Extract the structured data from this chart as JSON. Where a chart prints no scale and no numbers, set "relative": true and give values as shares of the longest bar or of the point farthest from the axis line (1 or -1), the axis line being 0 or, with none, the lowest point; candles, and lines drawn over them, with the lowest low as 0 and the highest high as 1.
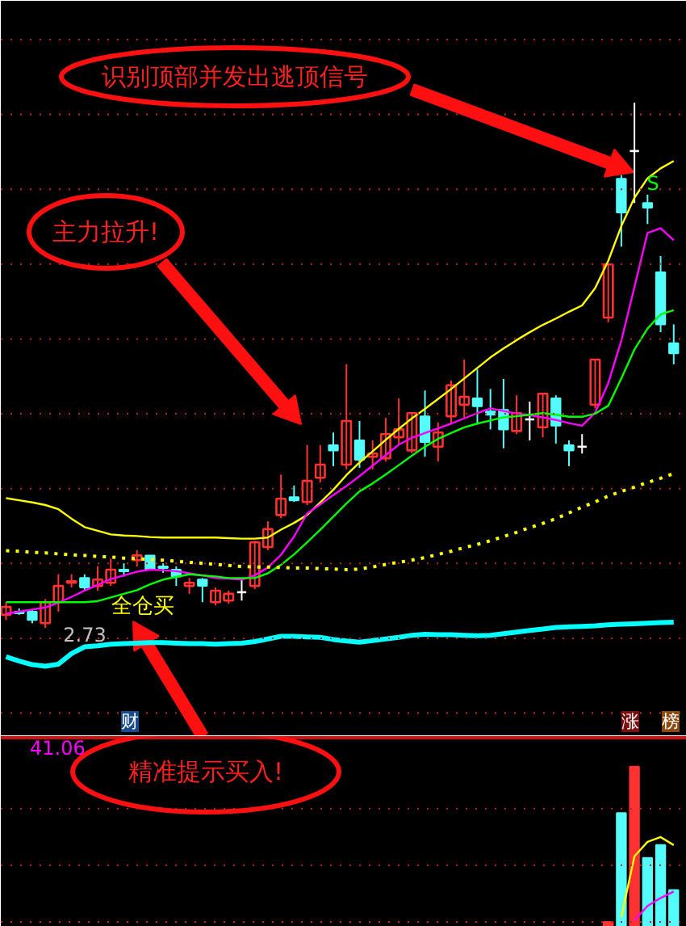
{
  "chart_data": [
    {
      "type": "candlestick",
      "relative": true,
      "ref_lines": [
        {
          "axis": "y",
          "value": 1.12,
          "color": "#c02020",
          "line_style": "dotted"
        },
        {
          "axis": "y",
          "value": 0.978,
          "color": "#c02020",
          "line_style": "dotted"
        },
        {
          "axis": "y",
          "value": 0.835,
          "color": "#c02020",
          "line_style": "dotted"
        },
        {
          "axis": "y",
          "value": 0.693,
          "color": "#c02020",
          "line_style": "dotted"
        },
        {
          "axis": "y",
          "value": 0.55,
          "color": "#c02020",
          "line_style": "dotted"
        },
        {
          "axis": "y",
          "value": 0.408,
          "color": "#c02020",
          "line_style": "dotted"
        },
        {
          "axis": "y",
          "value": 0.265,
          "color": "#c02020",
          "line_style": "dotted"
        },
        {
          "axis": "y",
          "value": 0.123,
          "color": "#c02020",
          "line_style": "dotted"
        },
        {
          "axis": "y",
          "value": -0.02,
          "color": "#c02020",
          "line_style": "dotted"
        },
        {
          "axis": "y",
          "value": -0.162,
          "color": "#c02020",
          "line_style": "dotted"
        }
      ],
      "categories": [
        null,
        null,
        null,
        null,
        null,
        null,
        null,
        null,
        null,
        null,
        null,
        null,
        null,
        null,
        null,
        null,
        null,
        null,
        null,
        null,
        null,
        null,
        null,
        null,
        null,
        null,
        null,
        null,
        null,
        null,
        null,
        null,
        null,
        null,
        null,
        null,
        null,
        null,
        null,
        null,
        null,
        null,
        null,
        null,
        null,
        null,
        null,
        null,
        null,
        null,
        null,
        null
      ],
      "ohlc": [
        [
          0.025,
          0.049,
          0.015,
          0.04
        ],
        [
          0.031,
          0.037,
          0.025,
          0.028
        ],
        [
          0.031,
          0.034,
          0.009,
          0.015
        ],
        [
          0.009,
          0.055,
          0,
          0.049
        ],
        [
          0.049,
          0.102,
          0.031,
          0.08
        ],
        [
          0.086,
          0.102,
          0.077,
          0.089
        ],
        [
          0.095,
          0.102,
          0.071,
          0.077
        ],
        [
          0.08,
          0.117,
          0.071,
          0.092
        ],
        [
          0.086,
          0.132,
          0.08,
          0.111
        ],
        [
          0.111,
          0.123,
          0.098,
          0.108
        ],
        [
          0.129,
          0.148,
          0.117,
          0.138
        ],
        [
          0.138,
          0.138,
          0.111,
          0.111
        ],
        [
          0.117,
          0.123,
          0.105,
          0.114
        ],
        [
          0.111,
          0.117,
          0.08,
          0.098
        ],
        [
          0.08,
          0.095,
          0.065,
          0.086
        ],
        [
          0.092,
          0.095,
          0.049,
          0.08
        ],
        [
          0.049,
          0.077,
          0.043,
          0.071
        ],
        [
          0.052,
          0.071,
          0.046,
          0.065
        ],
        [
          0.068,
          0.092,
          0.052,
          0.068
        ],
        [
          0.08,
          0.166,
          0.074,
          0.163
        ],
        [
          0.154,
          0.203,
          0.148,
          0.188
        ],
        [
          0.215,
          0.292,
          0.209,
          0.246
        ],
        [
          0.249,
          0.271,
          0.24,
          0.243
        ],
        [
          0.24,
          0.348,
          0.234,
          0.28
        ],
        [
          0.286,
          0.348,
          0.277,
          0.311
        ],
        [
          0.348,
          0.372,
          0.308,
          0.338
        ],
        [
          0.311,
          0.502,
          0.302,
          0.394
        ],
        [
          0.357,
          0.394,
          0.305,
          0.32
        ],
        [
          0.326,
          0.357,
          0.302,
          0.332
        ],
        [
          0.323,
          0.4,
          0.317,
          0.369
        ],
        [
          0.363,
          0.437,
          0.351,
          0.378
        ],
        [
          0.338,
          0.409,
          0.332,
          0.409
        ],
        [
          0.403,
          0.452,
          0.326,
          0.354
        ],
        [
          0.345,
          0.391,
          0.317,
          0.372
        ],
        [
          0.403,
          0.471,
          0.388,
          0.462
        ],
        [
          0.425,
          0.511,
          0.4,
          0.44
        ],
        [
          0.437,
          0.492,
          0.388,
          0.422
        ],
        [
          0.412,
          0.455,
          0.378,
          0.406
        ],
        [
          0.415,
          0.474,
          0.342,
          0.378
        ],
        [
          0.375,
          0.443,
          0.369,
          0.409
        ],
        [
          0.397,
          0.431,
          0.357,
          0.397
        ],
        [
          0.382,
          0.446,
          0.363,
          0.446
        ],
        [
          0.437,
          0.443,
          0.351,
          0.385
        ],
        [
          0.348,
          0.357,
          0.308,
          0.338
        ],
        [
          0.345,
          0.369,
          0.332,
          0.345
        ],
        [
          0.425,
          0.511,
          0.418,
          0.511
        ],
        [
          0.591,
          0.692,
          0.582,
          0.692
        ],
        [
          0.855,
          0.862,
          0.726,
          0.791
        ],
        [
          0.908,
          1,
          0.809,
          0.908
        ],
        [
          0.809,
          0.825,
          0.769,
          0.8
        ],
        [
          0.677,
          0.708,
          0.563,
          0.578
        ],
        [
          0.542,
          0.578,
          0.502,
          0.523
        ]
      ],
      "series": [
        {
          "type": "line",
          "color": "#ffff00",
          "values": [
            0.247,
            0.243,
            0.239,
            0.234,
            0.226,
            0.208,
            0.192,
            0.185,
            0.178,
            0.176,
            0.175,
            0.173,
            0.172,
            0.172,
            0.172,
            0.172,
            0.172,
            0.171,
            0.17,
            0.17,
            0.172,
            0.187,
            0.2,
            0.215,
            0.239,
            0.263,
            0.291,
            0.315,
            0.336,
            0.358,
            0.379,
            0.399,
            0.417,
            0.436,
            0.455,
            0.475,
            0.495,
            0.515,
            0.532,
            0.548,
            0.563,
            0.577,
            0.589,
            0.602,
            0.614,
            0.647,
            0.699,
            0.765,
            0.819,
            0.856,
            0.875,
            0.889
          ]
        },
        {
          "type": "line",
          "color": "#ff00ff",
          "values": [
            0.027,
            0.031,
            0.035,
            0.039,
            0.048,
            0.059,
            0.071,
            0.082,
            0.093,
            0.1,
            0.107,
            0.111,
            0.11,
            0.108,
            0.104,
            0.1,
            0.095,
            0.094,
            0.092,
            0.1,
            0.115,
            0.139,
            0.174,
            0.218,
            0.235,
            0.253,
            0.27,
            0.289,
            0.309,
            0.329,
            0.349,
            0.362,
            0.371,
            0.38,
            0.389,
            0.399,
            0.409,
            0.418,
            0.413,
            0.408,
            0.405,
            0.401,
            0.396,
            0.39,
            0.385,
            0.41,
            0.466,
            0.547,
            0.649,
            0.752,
            0.761,
            0.738
          ]
        },
        {
          "type": "line",
          "color": "#00ff00",
          "values": [
            0.049,
            0.049,
            0.049,
            0.049,
            0.049,
            0.049,
            0.049,
            0.051,
            0.058,
            0.065,
            0.072,
            0.083,
            0.092,
            0.097,
            0.102,
            0.1,
            0.098,
            0.095,
            0.095,
            0.095,
            0.104,
            0.12,
            0.14,
            0.163,
            0.187,
            0.212,
            0.237,
            0.26,
            0.275,
            0.292,
            0.31,
            0.328,
            0.345,
            0.36,
            0.371,
            0.382,
            0.389,
            0.395,
            0.401,
            0.403,
            0.406,
            0.409,
            0.406,
            0.402,
            0.402,
            0.408,
            0.423,
            0.475,
            0.53,
            0.57,
            0.597,
            0.605
          ]
        },
        {
          "type": "line",
          "color": "#00ffff",
          "values": [
            -0.055,
            -0.063,
            -0.07,
            -0.073,
            -0.069,
            -0.049,
            -0.036,
            -0.034,
            -0.031,
            -0.03,
            -0.029,
            -0.028,
            -0.028,
            -0.029,
            -0.03,
            -0.03,
            -0.031,
            -0.03,
            -0.029,
            -0.026,
            -0.021,
            -0.016,
            -0.016,
            -0.017,
            -0.018,
            -0.022,
            -0.025,
            -0.027,
            -0.024,
            -0.021,
            -0.018,
            -0.014,
            -0.012,
            -0.013,
            -0.013,
            -0.014,
            -0.015,
            -0.014,
            -0.011,
            -0.008,
            -0.005,
            -0.002,
            0.001,
            0.002,
            0.003,
            0.004,
            0.006,
            0.007,
            0.008,
            0.009,
            0.01,
            0.011
          ]
        },
        {
          "type": "line",
          "color": "#ffff00",
          "line_style": "dotted",
          "values": [
            0.147,
            0.146,
            0.144,
            0.143,
            0.141,
            0.139,
            0.138,
            0.136,
            0.135,
            0.133,
            0.132,
            0.13,
            0.129,
            0.127,
            0.125,
            0.123,
            0.121,
            0.119,
            0.117,
            0.116,
            0.116,
            0.115,
            0.114,
            0.114,
            0.113,
            0.112,
            0.111,
            0.112,
            0.116,
            0.121,
            0.125,
            0.129,
            0.134,
            0.14,
            0.146,
            0.153,
            0.159,
            0.166,
            0.174,
            0.182,
            0.191,
            0.199,
            0.208,
            0.219,
            0.23,
            0.24,
            0.251,
            0.26,
            0.268,
            0.277,
            0.285,
            0.294
          ]
        }
      ],
      "annotations": [
        "识别顶部并发出逃顶信号",
        "主力拉升!",
        "全仓买",
        "2.73",
        "S",
        "财",
        "涨",
        "榜"
      ]
    },
    {
      "type": "bar",
      "relative": true,
      "ref_lines": [
        {
          "axis": "y",
          "value": 0.737,
          "color": "#c02020",
          "line_style": "dotted"
        },
        {
          "axis": "y",
          "value": 0.384,
          "color": "#c02020",
          "line_style": "dotted"
        },
        {
          "axis": "y",
          "value": 0.03,
          "color": "#c02020",
          "line_style": "dotted"
        }
      ],
      "categories": [
        null,
        null,
        null,
        null,
        null,
        null,
        null,
        null,
        null,
        null,
        null,
        null,
        null,
        null,
        null,
        null,
        null,
        null,
        null,
        null,
        null,
        null,
        null,
        null,
        null,
        null,
        null,
        null,
        null,
        null,
        null,
        null,
        null,
        null,
        null,
        null,
        null,
        null,
        null,
        null,
        null,
        null,
        null,
        null,
        null,
        null,
        null,
        null,
        null,
        null,
        null,
        null
      ],
      "series": [
        {
          "type": "bar",
          "values": [
            null,
            null,
            null,
            null,
            null,
            null,
            null,
            null,
            null,
            null,
            null,
            null,
            null,
            null,
            null,
            null,
            null,
            null,
            null,
            null,
            null,
            null,
            null,
            null,
            null,
            null,
            null,
            null,
            null,
            null,
            null,
            null,
            null,
            null,
            null,
            null,
            null,
            null,
            null,
            null,
            null,
            null,
            null,
            null,
            null,
            null,
            0.03,
            0.71,
            1,
            0.43,
            0.51,
            0.23
          ],
          "colors": [
            "#ff3232",
            "#ff3232",
            "#ff3232",
            "#ff3232",
            "#ff3232",
            "#ff3232",
            "#ff3232",
            "#ff3232",
            "#ff3232",
            "#ff3232",
            "#ff3232",
            "#ff3232",
            "#ff3232",
            "#ff3232",
            "#ff3232",
            "#ff3232",
            "#ff3232",
            "#ff3232",
            "#ff3232",
            "#ff3232",
            "#ff3232",
            "#ff3232",
            "#ff3232",
            "#ff3232",
            "#ff3232",
            "#ff3232",
            "#ff3232",
            "#ff3232",
            "#ff3232",
            "#ff3232",
            "#ff3232",
            "#ff3232",
            "#ff3232",
            "#ff3232",
            "#ff3232",
            "#ff3232",
            "#ff3232",
            "#ff3232",
            "#ff3232",
            "#ff3232",
            "#ff3232",
            "#ff3232",
            "#ff3232",
            "#ff3232",
            "#ff3232",
            "#ff3232",
            "#ff3232",
            "#54fcfc",
            "#ff3232",
            "#54fcfc",
            "#54fcfc",
            "#54fcfc"
          ]
        },
        {
          "type": "line",
          "color": "#ffff00",
          "values": [
            null,
            null,
            null,
            null,
            null,
            null,
            null,
            null,
            null,
            null,
            null,
            null,
            null,
            null,
            null,
            null,
            null,
            null,
            null,
            null,
            null,
            null,
            null,
            null,
            null,
            null,
            null,
            null,
            null,
            null,
            null,
            null,
            null,
            null,
            null,
            null,
            null,
            null,
            null,
            null,
            null,
            null,
            null,
            null,
            null,
            null,
            null,
            0.06,
            0.44,
            0.53,
            0.56,
            0.51
          ]
        },
        {
          "type": "line",
          "color": "#ff00ff",
          "values": [
            null,
            null,
            null,
            null,
            null,
            null,
            null,
            null,
            null,
            null,
            null,
            null,
            null,
            null,
            null,
            null,
            null,
            null,
            null,
            null,
            null,
            null,
            null,
            null,
            null,
            null,
            null,
            null,
            null,
            null,
            null,
            null,
            null,
            null,
            null,
            null,
            null,
            null,
            null,
            null,
            null,
            null,
            null,
            null,
            null,
            null,
            null,
            null,
            0.04,
            0.13,
            0.18,
            0.22
          ]
        }
      ],
      "annotations": [
        "精准提示买入!",
        "41.06"
      ]
    }
  ]
}
